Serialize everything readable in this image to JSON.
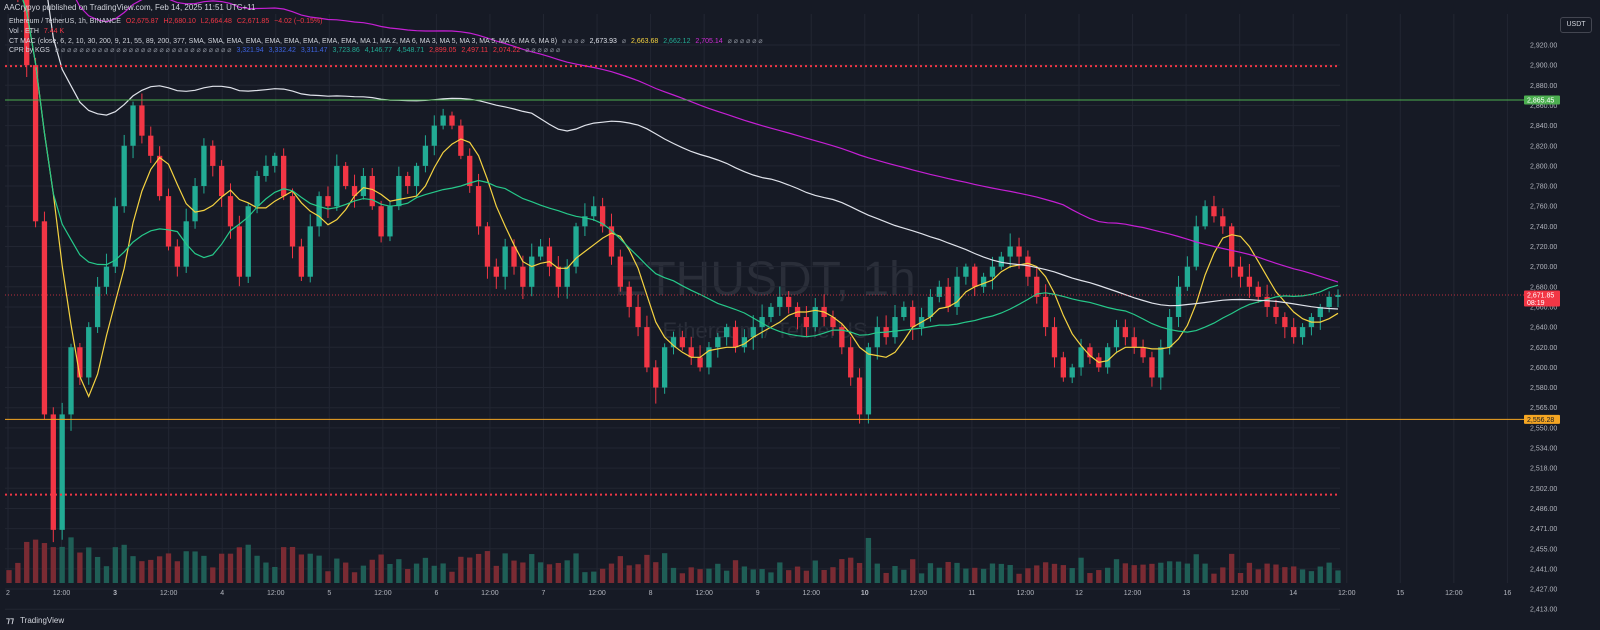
{
  "header": {
    "published": "AACrypyo published on TradingView.com, Feb 14, 2025 11:51 UTC+11"
  },
  "legend": {
    "symbol": "Ethereum / TetherUS, 1h, BINANCE",
    "ohlc": [
      "O2,675.87",
      "H2,680.10",
      "L2,664.48",
      "C2,671.85",
      "−4.02 (−0.15%)"
    ],
    "vol_label": "Vol · ETH",
    "vol_value": "7.44 K",
    "mac_label": "CT MAC (close, 6, 2, 10, 30, 200, 9, 21, 55, 89, 200, 377, SMA, SMA, EMA, EMA, EMA, EMA, EMA, EMA, EMA, MA 1, MA 2, MA 6, MA 3, MA 5, MA 3, MA 5, MA 6, MA 6, MA 8)",
    "mac_values": [
      "2,673.93",
      "2,663.68",
      "2,662.12",
      "2,705.14"
    ],
    "cpr_label": "CPR by KGS",
    "cpr_values": [
      "3,321.94",
      "3,332.42",
      "3,311.47",
      "3,723.86",
      "4,146.77",
      "4,548.71",
      "2,899.05",
      "2,497.11",
      "2,074.22"
    ]
  },
  "usdt_button": "USDT",
  "watermark": {
    "main": "ETHUSDT, 1h",
    "sub": "Ethereum / TetherUS"
  },
  "footer": {
    "brand": "TradingView"
  },
  "colors": {
    "bg": "#161a25",
    "up": "#22ab94",
    "down": "#f23645",
    "grid": "#222632",
    "ma_yellow": "#f5d341",
    "ma_green": "#26c98a",
    "ma_white": "#e0e3eb",
    "ma_magenta": "#c51fd4",
    "level_green": "#4caf50",
    "level_orange": "#f5a623",
    "cpr_red": "#f23645"
  },
  "chart_data": {
    "type": "candlestick",
    "price_axis": {
      "ticks": [
        2920,
        2900,
        2880,
        2860,
        2840,
        2820,
        2800,
        2780,
        2760,
        2740,
        2720,
        2700,
        2680,
        2660,
        2640,
        2620,
        2600,
        2580,
        2565,
        2550,
        2534,
        2518,
        2502,
        2486,
        2471,
        2455,
        2441,
        2427,
        2413
      ],
      "tick_labels": [
        "2,920.00",
        "2,900.00",
        "2,880.00",
        "2,860.00",
        "2,840.00",
        "2,820.00",
        "2,800.00",
        "2,780.00",
        "2,760.00",
        "2,740.00",
        "2,720.00",
        "2,700.00",
        "2,680.00",
        "2,660.00",
        "2,640.00",
        "2,620.00",
        "2,600.00",
        "2,580.00",
        "2,565.00",
        "2,550.00",
        "2,534.00",
        "2,518.00",
        "2,502.00",
        "2,486.00",
        "2,471.00",
        "2,455.00",
        "2,441.00",
        "2,427.00",
        "2,413.00"
      ]
    },
    "time_axis": {
      "labels": [
        "2",
        "12:00",
        "3",
        "12:00",
        "4",
        "12:00",
        "5",
        "12:00",
        "6",
        "12:00",
        "7",
        "12:00",
        "8",
        "12:00",
        "9",
        "12:00",
        "10",
        "12:00",
        "11",
        "12:00",
        "12",
        "12:00",
        "13",
        "12:00",
        "14",
        "12:00",
        "15",
        "12:00",
        "16"
      ],
      "bold": [
        "3",
        "10"
      ]
    },
    "price_labels": [
      {
        "value": 2865.45,
        "text": "2,865.45",
        "kind": "level_green"
      },
      {
        "value": 2671.85,
        "text": "2,671.85",
        "kind": "last",
        "countdown": "08:19"
      },
      {
        "value": 2556.28,
        "text": "2,556.28",
        "kind": "level_orange"
      }
    ],
    "horizontal_levels": [
      {
        "value": 2899,
        "style": "dotted",
        "color": "cpr_red"
      },
      {
        "value": 2865.45,
        "style": "solid",
        "color": "level_green"
      },
      {
        "value": 2556.28,
        "style": "solid",
        "color": "level_orange"
      },
      {
        "value": 2497,
        "style": "dotted",
        "color": "cpr_red"
      }
    ],
    "candles_hourly_close": [
      2990,
      2970,
      2900,
      2745,
      2560,
      2470,
      2560,
      2620,
      2590,
      2640,
      2680,
      2700,
      2760,
      2820,
      2860,
      2830,
      2810,
      2770,
      2720,
      2700,
      2745,
      2780,
      2820,
      2800,
      2770,
      2740,
      2690,
      2760,
      2790,
      2800,
      2810,
      2770,
      2720,
      2690,
      2740,
      2770,
      2760,
      2800,
      2780,
      2770,
      2790,
      2760,
      2730,
      2760,
      2790,
      2780,
      2800,
      2820,
      2840,
      2850,
      2840,
      2810,
      2780,
      2740,
      2700,
      2690,
      2720,
      2700,
      2680,
      2710,
      2720,
      2700,
      2680,
      2700,
      2740,
      2750,
      2760,
      2740,
      2710,
      2680,
      2660,
      2640,
      2600,
      2580,
      2620,
      2630,
      2620,
      2610,
      2600,
      2620,
      2630,
      2640,
      2620,
      2630,
      2640,
      2650,
      2660,
      2670,
      2660,
      2650,
      2640,
      2660,
      2650,
      2640,
      2620,
      2590,
      2560,
      2620,
      2640,
      2630,
      2650,
      2660,
      2640,
      2650,
      2670,
      2680,
      2660,
      2690,
      2700,
      2680,
      2690,
      2700,
      2710,
      2720,
      2710,
      2690,
      2670,
      2640,
      2610,
      2590,
      2600,
      2620,
      2610,
      2600,
      2620,
      2640,
      2630,
      2620,
      2610,
      2590,
      2620,
      2650,
      2680,
      2700,
      2740,
      2760,
      2750,
      2740,
      2700,
      2690,
      2680,
      2670,
      2660,
      2650,
      2640,
      2630,
      2640,
      2650,
      2660,
      2670,
      2672
    ]
  }
}
